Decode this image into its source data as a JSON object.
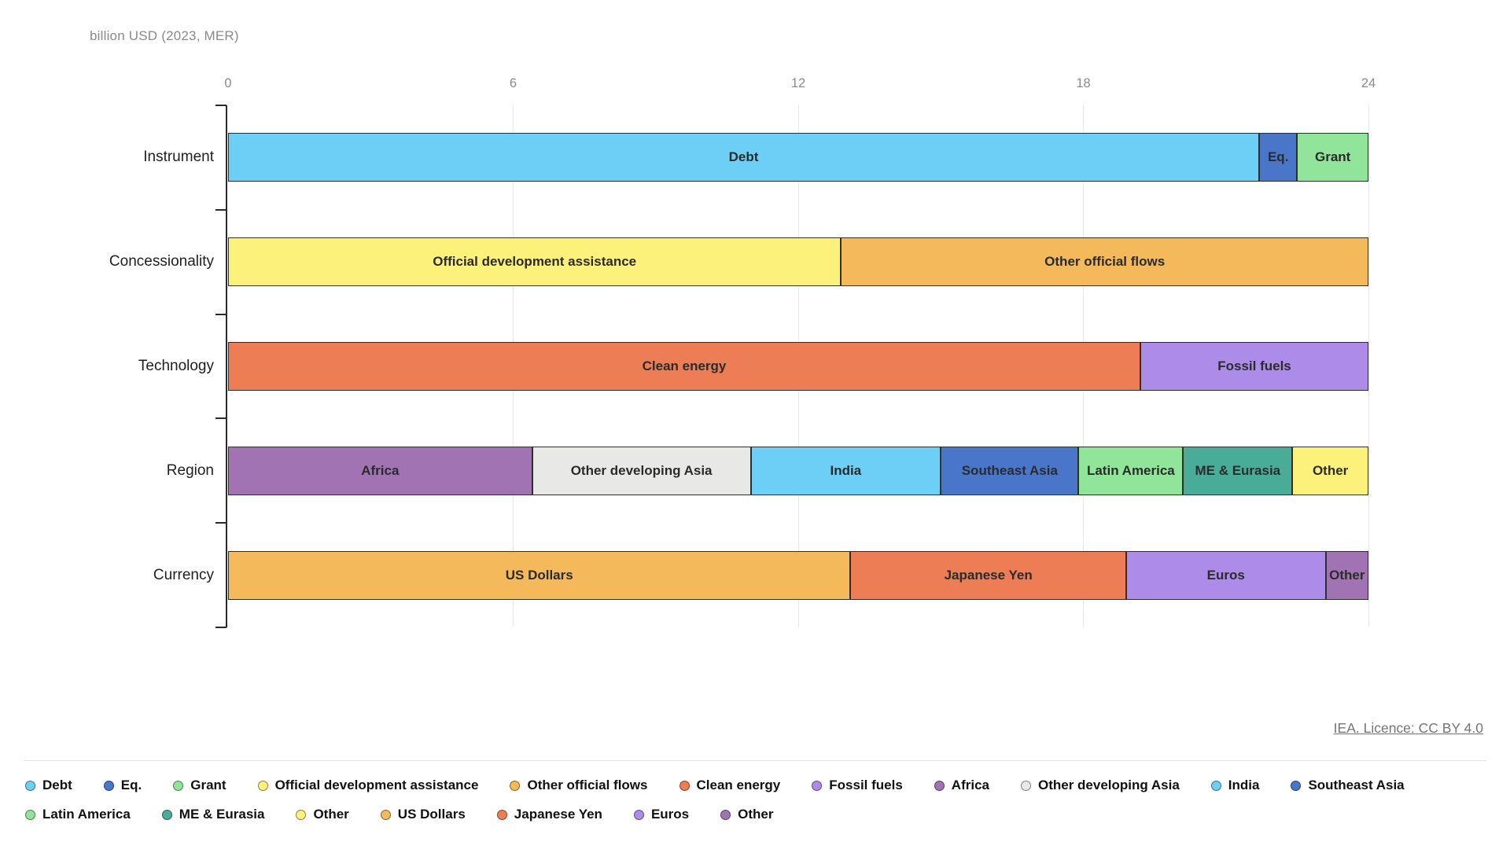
{
  "chart": {
    "unit_label": "billion USD (2023, MER)"
  },
  "chart_data": {
    "type": "bar",
    "orientation": "horizontal-stacked",
    "title": "",
    "xlabel": "billion USD (2023, MER)",
    "ylabel": "",
    "xlim": [
      0,
      24
    ],
    "xticks": [
      0,
      6,
      12,
      18,
      24
    ],
    "grid": true,
    "legend_position": "bottom",
    "categories": [
      "Instrument",
      "Concessionality",
      "Technology",
      "Region",
      "Currency"
    ],
    "rows": [
      {
        "category": "Instrument",
        "segments": [
          {
            "label": "Debt",
            "value": 21.7,
            "color": "#6DCFF6"
          },
          {
            "label": "Eq.",
            "value": 0.8,
            "color": "#4A76C9"
          },
          {
            "label": "Grant",
            "value": 1.5,
            "color": "#90E59A"
          }
        ]
      },
      {
        "category": "Concessionality",
        "segments": [
          {
            "label": "Official development assistance",
            "value": 12.9,
            "color": "#FCF17B"
          },
          {
            "label": "Other official flows",
            "value": 11.1,
            "color": "#F3B95B"
          }
        ]
      },
      {
        "category": "Technology",
        "segments": [
          {
            "label": "Clean energy",
            "value": 19.2,
            "color": "#ED7D55"
          },
          {
            "label": "Fossil fuels",
            "value": 4.8,
            "color": "#AC8CE8"
          }
        ]
      },
      {
        "category": "Region",
        "segments": [
          {
            "label": "Africa",
            "value": 6.4,
            "color": "#A273B3"
          },
          {
            "label": "Other developing Asia",
            "value": 4.6,
            "color": "#E8E8E6"
          },
          {
            "label": "India",
            "value": 4.0,
            "color": "#6DCFF6"
          },
          {
            "label": "Southeast Asia",
            "value": 2.9,
            "color": "#4A76C9"
          },
          {
            "label": "Latin America",
            "value": 2.2,
            "color": "#90E59A"
          },
          {
            "label": "ME & Eurasia",
            "value": 2.3,
            "color": "#49AC98"
          },
          {
            "label": "Other",
            "value": 1.6,
            "color": "#FCF17B"
          }
        ]
      },
      {
        "category": "Currency",
        "segments": [
          {
            "label": "US Dollars",
            "value": 13.1,
            "color": "#F3B95B"
          },
          {
            "label": "Japanese Yen",
            "value": 5.8,
            "color": "#ED7D55"
          },
          {
            "label": "Euros",
            "value": 4.2,
            "color": "#AC8CE8"
          },
          {
            "label": "Other",
            "value": 0.9,
            "color": "#A273B3"
          }
        ]
      }
    ]
  },
  "legend": {
    "rows": [
      [
        {
          "label": "Debt",
          "color": "#6DCFF6"
        },
        {
          "label": "Eq.",
          "color": "#4A76C9"
        },
        {
          "label": "Grant",
          "color": "#90E59A"
        },
        {
          "label": "Official development assistance",
          "color": "#FCF17B"
        },
        {
          "label": "Other official flows",
          "color": "#F3B95B"
        },
        {
          "label": "Clean energy",
          "color": "#ED7D55"
        },
        {
          "label": "Fossil fuels",
          "color": "#AC8CE8"
        },
        {
          "label": "Africa",
          "color": "#A273B3"
        },
        {
          "label": "Other developing Asia",
          "color": "#E8E8E6"
        },
        {
          "label": "India",
          "color": "#6DCFF6"
        },
        {
          "label": "Southeast Asia",
          "color": "#4A76C9"
        }
      ],
      [
        {
          "label": "Latin America",
          "color": "#90E59A"
        },
        {
          "label": "ME & Eurasia",
          "color": "#49AC98"
        },
        {
          "label": "Other",
          "color": "#FCF17B"
        },
        {
          "label": "US Dollars",
          "color": "#F3B95B"
        },
        {
          "label": "Japanese Yen",
          "color": "#ED7D55"
        },
        {
          "label": "Euros",
          "color": "#AC8CE8"
        },
        {
          "label": "Other",
          "color": "#A273B3"
        }
      ]
    ]
  },
  "footer": {
    "licence_text": "IEA. Licence: CC BY 4.0"
  }
}
